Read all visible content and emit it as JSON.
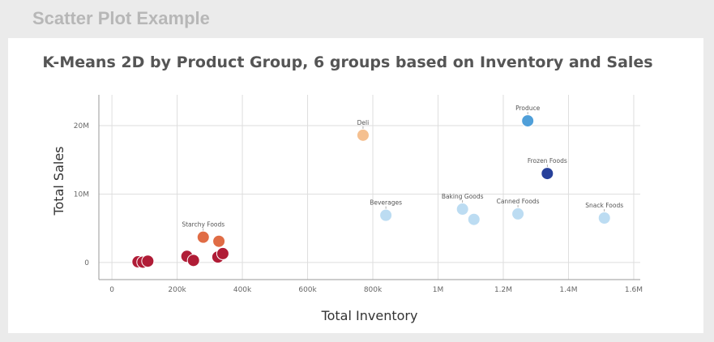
{
  "page": {
    "heading": "Scatter Plot Example"
  },
  "chart_data": {
    "type": "scatter",
    "title": "K-Means 2D by Product Group, 6 groups based on Inventory and Sales",
    "xlabel": "Total Inventory",
    "ylabel": "Total Sales",
    "xlim": [
      -40000,
      1620000
    ],
    "ylim": [
      -2500000,
      24500000
    ],
    "x_ticks": [
      {
        "value": 0,
        "label": "0"
      },
      {
        "value": 200000,
        "label": "200k"
      },
      {
        "value": 400000,
        "label": "400k"
      },
      {
        "value": 600000,
        "label": "600k"
      },
      {
        "value": 800000,
        "label": "800k"
      },
      {
        "value": 1000000,
        "label": "1M"
      },
      {
        "value": 1200000,
        "label": "1.2M"
      },
      {
        "value": 1400000,
        "label": "1.4M"
      },
      {
        "value": 1600000,
        "label": "1.6M"
      }
    ],
    "y_ticks": [
      {
        "value": 0,
        "label": "0"
      },
      {
        "value": 10000000,
        "label": "10M"
      },
      {
        "value": 20000000,
        "label": "20M"
      }
    ],
    "grid": true,
    "points": [
      {
        "x": 80000,
        "y": 100000,
        "color": "#b01c36",
        "label": ""
      },
      {
        "x": 95000,
        "y": 50000,
        "color": "#b01c36",
        "label": ""
      },
      {
        "x": 110000,
        "y": 200000,
        "color": "#b01c36",
        "label": ""
      },
      {
        "x": 230000,
        "y": 900000,
        "color": "#b01c36",
        "label": ""
      },
      {
        "x": 250000,
        "y": 300000,
        "color": "#b01c36",
        "label": ""
      },
      {
        "x": 325000,
        "y": 800000,
        "color": "#b01c36",
        "label": ""
      },
      {
        "x": 340000,
        "y": 1300000,
        "color": "#b01c36",
        "label": ""
      },
      {
        "x": 280000,
        "y": 3700000,
        "color": "#e06c45",
        "label": "Starchy Foods"
      },
      {
        "x": 328000,
        "y": 3100000,
        "color": "#e06c45",
        "label": ""
      },
      {
        "x": 770000,
        "y": 18600000,
        "color": "#f5c090",
        "label": "Deli"
      },
      {
        "x": 840000,
        "y": 6900000,
        "color": "#bcdcf2",
        "label": "Beverages"
      },
      {
        "x": 1075000,
        "y": 7800000,
        "color": "#bcdcf2",
        "label": "Baking Goods"
      },
      {
        "x": 1110000,
        "y": 6300000,
        "color": "#bcdcf2",
        "label": ""
      },
      {
        "x": 1245000,
        "y": 7100000,
        "color": "#bcdcf2",
        "label": "Canned Foods"
      },
      {
        "x": 1275000,
        "y": 20700000,
        "color": "#4f9fd9",
        "label": "Produce"
      },
      {
        "x": 1335000,
        "y": 13000000,
        "color": "#27409a",
        "label": "Frozen Foods"
      },
      {
        "x": 1510000,
        "y": 6500000,
        "color": "#bcdcf2",
        "label": "Snack Foods"
      }
    ]
  }
}
